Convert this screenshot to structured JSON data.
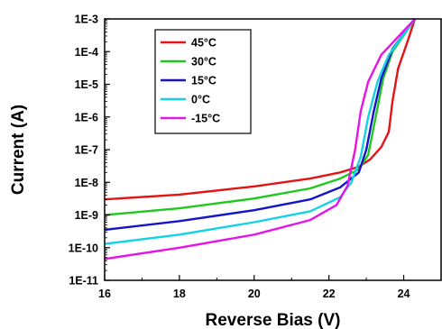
{
  "chart_data": {
    "type": "line",
    "xlabel": "Reverse Bias (V)",
    "ylabel": "Current (A)",
    "xlim": [
      16,
      25
    ],
    "ylim_exponents": [
      -11,
      -3
    ],
    "y_scale": "log",
    "grid": false,
    "legend_position": "top-left",
    "x_ticks": [
      "16",
      "18",
      "20",
      "22",
      "24"
    ],
    "x_tick_values": [
      16,
      18,
      20,
      22,
      24
    ],
    "y_ticks": [
      "1E-11",
      "1E-10",
      "1E-9",
      "1E-8",
      "1E-7",
      "1E-6",
      "1E-5",
      "1E-4",
      "1E-3"
    ],
    "y_tick_values": [
      1e-11,
      1e-10,
      1e-09,
      1e-08,
      1e-07,
      1e-06,
      1e-05,
      0.0001,
      0.001
    ],
    "series": [
      {
        "name": "45°C",
        "color": "#e41414",
        "points": [
          [
            16,
            3e-09
          ],
          [
            18,
            4.2e-09
          ],
          [
            20,
            7.5e-09
          ],
          [
            21.5,
            1.3e-08
          ],
          [
            22.3,
            2e-08
          ],
          [
            22.8,
            3e-08
          ],
          [
            23.1,
            5e-08
          ],
          [
            23.4,
            1.2e-07
          ],
          [
            23.6,
            3.5e-07
          ],
          [
            23.7,
            3e-06
          ],
          [
            23.85,
            3e-05
          ],
          [
            24.1,
            0.0002
          ],
          [
            24.3,
            0.001
          ]
        ]
      },
      {
        "name": "30°C",
        "color": "#1ec81e",
        "points": [
          [
            16,
            1e-09
          ],
          [
            18,
            1.6e-09
          ],
          [
            20,
            3.2e-09
          ],
          [
            21.5,
            6.5e-09
          ],
          [
            22.3,
            1.3e-08
          ],
          [
            22.8,
            2.5e-08
          ],
          [
            23.05,
            7e-08
          ],
          [
            23.25,
            1e-06
          ],
          [
            23.45,
            1.5e-05
          ],
          [
            23.7,
            0.0001
          ],
          [
            24.3,
            0.001
          ]
        ]
      },
      {
        "name": "15°C",
        "color": "#1414c8",
        "points": [
          [
            16,
            3.5e-10
          ],
          [
            18,
            6.5e-10
          ],
          [
            20,
            1.4e-09
          ],
          [
            21.5,
            3e-09
          ],
          [
            22.3,
            7e-09
          ],
          [
            22.8,
            2e-08
          ],
          [
            23.0,
            1e-07
          ],
          [
            23.2,
            1.5e-06
          ],
          [
            23.4,
            1.5e-05
          ],
          [
            23.7,
            0.00012
          ],
          [
            24.3,
            0.001
          ]
        ]
      },
      {
        "name": "0°C",
        "color": "#14d2e6",
        "points": [
          [
            16,
            1.3e-10
          ],
          [
            18,
            2.5e-10
          ],
          [
            20,
            6e-10
          ],
          [
            21.5,
            1.3e-09
          ],
          [
            22.3,
            3.5e-09
          ],
          [
            22.6,
            1e-08
          ],
          [
            22.85,
            6e-08
          ],
          [
            23.05,
            1e-06
          ],
          [
            23.3,
            1.2e-05
          ],
          [
            23.6,
            8e-05
          ],
          [
            24.3,
            0.001
          ]
        ]
      },
      {
        "name": "-15°C",
        "color": "#e614e6",
        "points": [
          [
            16,
            4.5e-11
          ],
          [
            18,
            1e-10
          ],
          [
            20,
            2.5e-10
          ],
          [
            21.5,
            7e-10
          ],
          [
            22.2,
            2e-09
          ],
          [
            22.5,
            8e-09
          ],
          [
            22.7,
            1e-07
          ],
          [
            22.85,
            1.5e-06
          ],
          [
            23.05,
            1.2e-05
          ],
          [
            23.4,
            8e-05
          ],
          [
            24.3,
            0.001
          ]
        ]
      }
    ]
  }
}
